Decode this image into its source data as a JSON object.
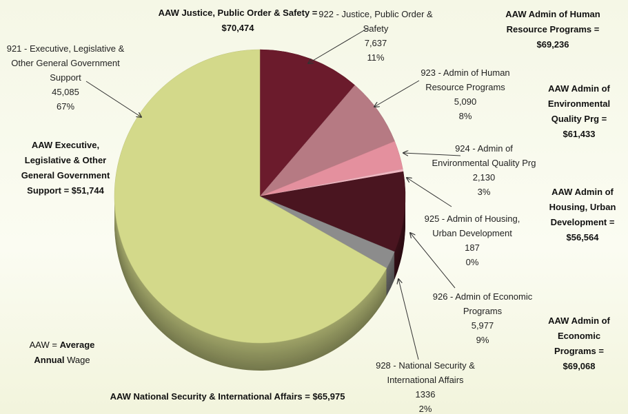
{
  "chart_data": {
    "type": "pie",
    "categories": [
      "922 - Justice, Public Order & Safety",
      "923 - Admin of Human Resource Programs",
      "924 - Admin of Environmental Quality Prg",
      "925 - Admin of Housing, Urban Development",
      "926 - Admin of Economic Programs",
      "928 - National Security & International Affairs",
      "921 - Executive, Legislative & Other General Government Support"
    ],
    "values": [
      7637,
      5090,
      2130,
      187,
      5977,
      1336,
      45085
    ],
    "value_labels": [
      "7,637",
      "5,090",
      "2,130",
      "187",
      "5,977",
      "1336",
      "45,085"
    ],
    "percent_labels": [
      "11%",
      "8%",
      "3%",
      "0%",
      "9%",
      "2%",
      "67%"
    ],
    "colors": [
      "#6b1b2c",
      "#b67a83",
      "#e4909e",
      "#f0b8c2",
      "#4a1520",
      "#8c8c8c",
      "#d3d98a"
    ],
    "start_angle": "top",
    "direction": "clockwise",
    "annotations": [
      "AAW Justice, Public Order & Safety = $70,474",
      "AAW Admin of Human Resource Programs = $69,236",
      "AAW Admin of Environmental Quality Prg = $61,433",
      "AAW Admin of Housing, Urban Development = $56,564",
      "AAW Admin of Economic Programs = $69,068",
      "AAW Executive, Legislative & Other General Government Support = $51,744",
      "AAW National Security & International Affairs = $65,975"
    ],
    "note": {
      "prefix": "AAW =",
      "bold_1": "Average",
      "bold_2": "Annual",
      "suffix": "Wage"
    }
  }
}
